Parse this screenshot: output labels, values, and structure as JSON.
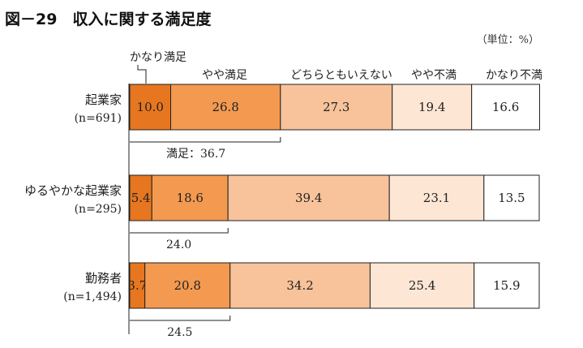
{
  "chart_data": {
    "type": "bar",
    "orientation": "horizontal-stacked-percent",
    "title": "図－29　収入に関する満足度",
    "unit": "（単位：%）",
    "legend": [
      "かなり満足",
      "やや満足",
      "どちらともいえない",
      "やや不満",
      "かなり不満"
    ],
    "categories": [
      {
        "name": "起業家",
        "n": "(n=691)"
      },
      {
        "name": "ゆるやかな起業家",
        "n": "(n=295)"
      },
      {
        "name": "勤務者",
        "n": "(n=1,494)"
      }
    ],
    "series": [
      {
        "name": "かなり満足",
        "values": [
          10.0,
          5.4,
          3.7
        ],
        "labels": [
          "10.0",
          "5.4",
          "3.7"
        ]
      },
      {
        "name": "やや満足",
        "values": [
          26.8,
          18.6,
          20.8
        ],
        "labels": [
          "26.8",
          "18.6",
          "20.8"
        ]
      },
      {
        "name": "どちらともいえない",
        "values": [
          27.3,
          39.4,
          34.2
        ],
        "labels": [
          "27.3",
          "39.4",
          "34.2"
        ]
      },
      {
        "name": "やや不満",
        "values": [
          19.4,
          23.1,
          25.4
        ],
        "labels": [
          "19.4",
          "23.1",
          "25.4"
        ]
      },
      {
        "name": "かなり不満",
        "values": [
          16.6,
          13.5,
          15.9
        ],
        "labels": [
          "16.6",
          "13.5",
          "15.9"
        ]
      }
    ],
    "satisfied_totals": [
      "満足：36.7",
      "24.0",
      "24.5"
    ],
    "colors": [
      "#e6761f",
      "#f39a50",
      "#f8c39a",
      "#fde6d4",
      "#ffffff"
    ],
    "xlim": [
      0,
      100
    ]
  }
}
